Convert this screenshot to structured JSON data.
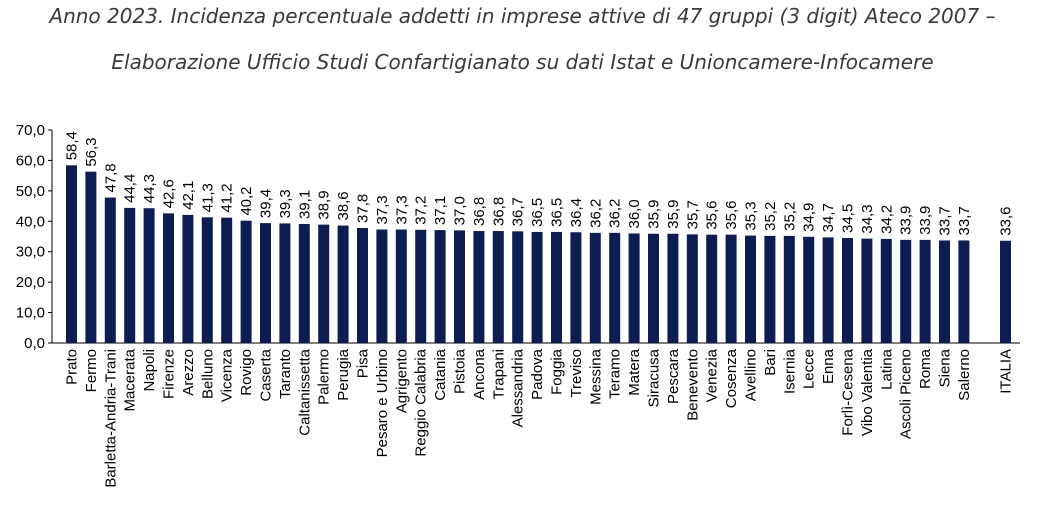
{
  "header": {
    "title": "Anno 2023. Incidenza percentuale addetti in imprese attive di 47 gruppi (3 digit) Ateco 2007 –",
    "subtitle": "Elaborazione Ufficio Studi Confartigianato su dati Istat e Unioncamere-Infocamere"
  },
  "chart_data": {
    "type": "bar",
    "title": "Anno 2023. Incidenza percentuale addetti in imprese attive di 47 gruppi (3 digit) Ateco 2007 –",
    "subtitle": "Elaborazione Ufficio Studi Confartigianato su dati Istat e Unioncamere-Infocamere",
    "xlabel": "",
    "ylabel": "",
    "ylim": [
      0,
      70
    ],
    "yticks": [
      "0,0",
      "10,0",
      "20,0",
      "30,0",
      "40,0",
      "50,0",
      "60,0",
      "70,0"
    ],
    "grid": false,
    "bar_color": "#0d1d52",
    "categories": [
      "Prato",
      "Fermo",
      "Barletta-Andria-Trani",
      "Macerata",
      "Napoli",
      "Firenze",
      "Arezzo",
      "Belluno",
      "Vicenza",
      "Rovigo",
      "Caserta",
      "Taranto",
      "Caltanissetta",
      "Palermo",
      "Perugia",
      "Pisa",
      "Pesaro e Urbino",
      "Agrigento",
      "Reggio Calabria",
      "Catania",
      "Pistoia",
      "Ancona",
      "Trapani",
      "Alessandria",
      "Padova",
      "Foggia",
      "Treviso",
      "Messina",
      "Teramo",
      "Matera",
      "Siracusa",
      "Pescara",
      "Benevento",
      "Venezia",
      "Cosenza",
      "Avellino",
      "Bari",
      "Isernia",
      "Lecce",
      "Enna",
      "Forlì-Cesena",
      "Vibo Valentia",
      "Latina",
      "Ascoli Piceno",
      "Roma",
      "Siena",
      "Salerno",
      "ITALIA"
    ],
    "values": [
      58.4,
      56.3,
      47.8,
      44.4,
      44.3,
      42.6,
      42.1,
      41.3,
      41.2,
      40.2,
      39.4,
      39.3,
      39.1,
      38.9,
      38.6,
      37.8,
      37.3,
      37.3,
      37.2,
      37.1,
      37.0,
      36.8,
      36.8,
      36.7,
      36.5,
      36.5,
      36.4,
      36.2,
      36.2,
      36.0,
      35.9,
      35.9,
      35.7,
      35.6,
      35.6,
      35.3,
      35.2,
      35.2,
      34.9,
      34.7,
      34.5,
      34.3,
      34.2,
      33.9,
      33.9,
      33.7,
      33.7,
      33.6
    ],
    "data_labels": [
      "58,4",
      "56,3",
      "47,8",
      "44,4",
      "44,3",
      "42,6",
      "42,1",
      "41,3",
      "41,2",
      "40,2",
      "39,4",
      "39,3",
      "39,1",
      "38,9",
      "38,6",
      "37,8",
      "37,3",
      "37,3",
      "37,2",
      "37,1",
      "37,0",
      "36,8",
      "36,8",
      "36,7",
      "36,5",
      "36,5",
      "36,4",
      "36,2",
      "36,2",
      "36,0",
      "35,9",
      "35,9",
      "35,7",
      "35,6",
      "35,6",
      "35,3",
      "35,2",
      "35,2",
      "34,9",
      "34,7",
      "34,5",
      "34,3",
      "34,2",
      "33,9",
      "33,9",
      "33,7",
      "33,7",
      "33,6"
    ]
  }
}
